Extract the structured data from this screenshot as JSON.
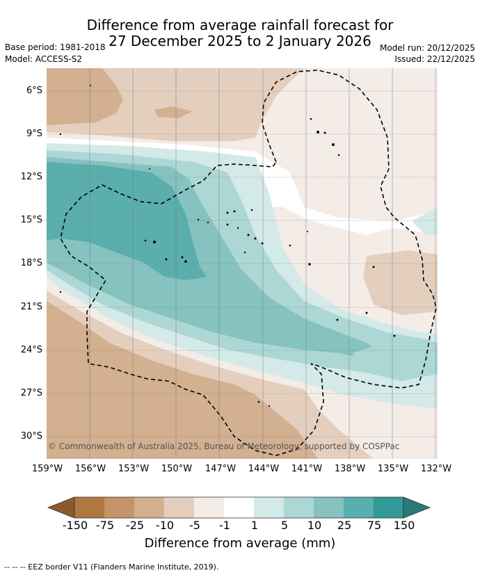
{
  "title": {
    "line1": "Difference from average rainfall forecast for",
    "line2": "27 December 2025 to 2 January 2026"
  },
  "meta": {
    "base_period": "Base period: 1981-2018",
    "model": "Model: ACCESS-S2",
    "model_run": "Model run: 20/12/2025",
    "issued": "Issued: 22/12/2025"
  },
  "map": {
    "copyright": "© Commonwealth of Australia 2025, Bureau of Meteorology, supported by COSPPac",
    "lat_labels": [
      "6°S",
      "9°S",
      "12°S",
      "15°S",
      "18°S",
      "21°S",
      "24°S",
      "27°S",
      "30°S"
    ],
    "lon_labels": [
      "159°W",
      "156°W",
      "153°W",
      "150°W",
      "147°W",
      "144°W",
      "141°W",
      "138°W",
      "135°W",
      "132°W"
    ],
    "colors": {
      "dry3": "#b07840",
      "dry2": "#c49468",
      "dry1": "#d2b090",
      "dry0": "#e4cfbe",
      "dryL": "#f4ece7",
      "neutral": "#ffffff",
      "wet0": "#d4eae8",
      "wet1": "#acd7d4",
      "wet2": "#85c2c0",
      "wet3": "#5aaeab",
      "wet4": "#329a97"
    }
  },
  "colorbar": {
    "ticks": [
      "-150",
      "-75",
      "-25",
      "-10",
      "-5",
      "-1",
      "1",
      "5",
      "10",
      "25",
      "75",
      "150"
    ],
    "label": "Difference from average (mm)",
    "colors": [
      "#8c5a2a",
      "#b07840",
      "#c49468",
      "#d2b090",
      "#e4cfbe",
      "#f4ece7",
      "#ffffff",
      "#d4eae8",
      "#acd7d4",
      "#85c2c0",
      "#5aaeab",
      "#329a97",
      "#2a7a78"
    ]
  },
  "legend": {
    "text": "--  --  -- EEZ border V11 (Flanders Marine Institute, 2019)."
  }
}
